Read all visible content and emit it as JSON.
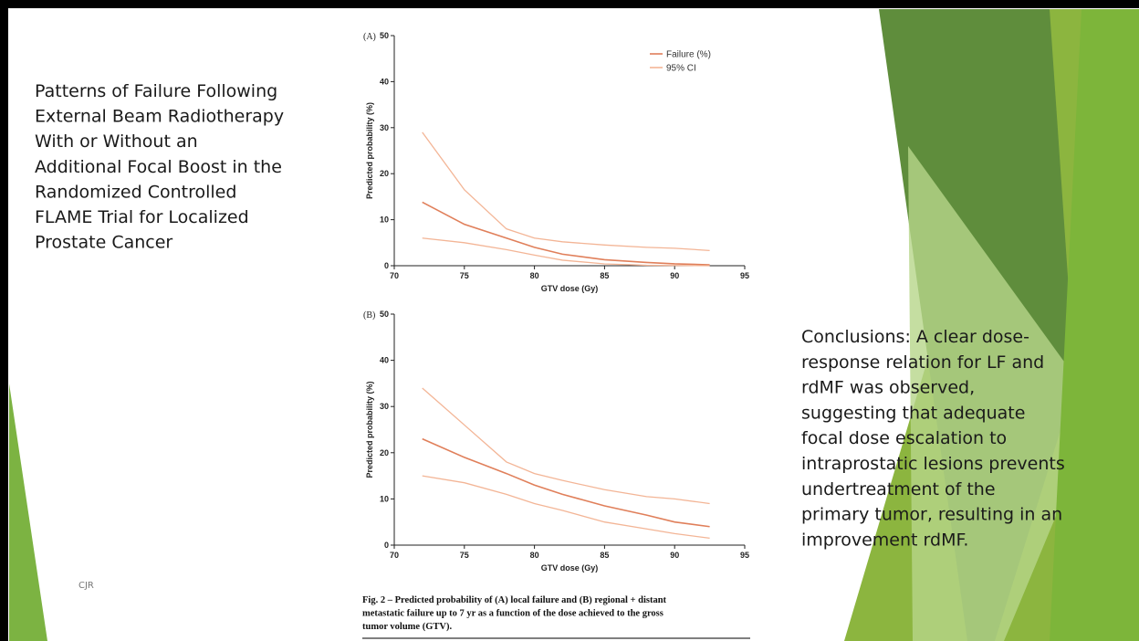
{
  "slide": {
    "title_lines": [
      "Patterns of Failure Following",
      "External Beam Radiotherapy",
      "With or Without an",
      "Additional Focal Boost in the",
      "Randomized Controlled",
      "FLAME Trial for Localized",
      "Prostate Cancer"
    ],
    "conclusion_lines": [
      "Conclusions: A clear dose-",
      "response relation for LF and",
      "rdMF was observed,",
      "suggesting that adequate",
      "focal dose escalation to",
      "intraprostatic lesions prevents",
      "undertreatment of the",
      "primary tumor, resulting in an",
      "improvement rdMF."
    ],
    "footer": "CJR",
    "caption_lines": [
      "Fig. 2 – Predicted probability of (A) local failure and (B) regional + distant",
      "metastatic failure up to 7 yr as a function of the dose achieved to the gross",
      "tumor volume (GTV)."
    ]
  },
  "chart_data": [
    {
      "type": "line",
      "panel": "(A)",
      "xlabel": "GTV dose (Gy)",
      "ylabel": "Predicted probability (%)",
      "x": [
        72,
        75,
        78,
        80,
        82,
        85,
        88,
        90,
        92.5
      ],
      "xlim": [
        70,
        95
      ],
      "xticks": [
        70,
        75,
        80,
        85,
        90,
        95
      ],
      "ylim": [
        0,
        50
      ],
      "yticks": [
        0,
        10,
        20,
        30,
        40,
        50
      ],
      "legend": "upper right",
      "series": [
        {
          "name": "Failure (%)",
          "color": "#e07f5a",
          "values": [
            13.8,
            9,
            6,
            4,
            2.5,
            1.3,
            0.7,
            0.4,
            0.2
          ]
        },
        {
          "name": "95% CI",
          "color": "#f3b596",
          "upper": [
            29,
            16.5,
            8,
            6,
            5.2,
            4.5,
            4,
            3.8,
            3.3
          ],
          "lower": [
            6,
            5,
            3.5,
            2.3,
            1.2,
            0.4,
            0.1,
            0.05,
            0
          ]
        }
      ]
    },
    {
      "type": "line",
      "panel": "(B)",
      "xlabel": "GTV dose (Gy)",
      "ylabel": "Predicted probability (%)",
      "x": [
        72,
        75,
        78,
        80,
        82,
        85,
        88,
        90,
        92.5
      ],
      "xlim": [
        70,
        95
      ],
      "xticks": [
        70,
        75,
        80,
        85,
        90,
        95
      ],
      "ylim": [
        0,
        50
      ],
      "yticks": [
        0,
        10,
        20,
        30,
        40,
        50
      ],
      "series": [
        {
          "color": "#e07f5a",
          "values": [
            23,
            19,
            15.5,
            13,
            11,
            8.5,
            6.5,
            5,
            4
          ]
        },
        {
          "color": "#f3b596",
          "upper": [
            34,
            26,
            18,
            15.5,
            14,
            12,
            10.5,
            10,
            9
          ],
          "lower": [
            15,
            13.5,
            11,
            9,
            7.5,
            5,
            3.5,
            2.5,
            1.5
          ]
        }
      ]
    }
  ]
}
